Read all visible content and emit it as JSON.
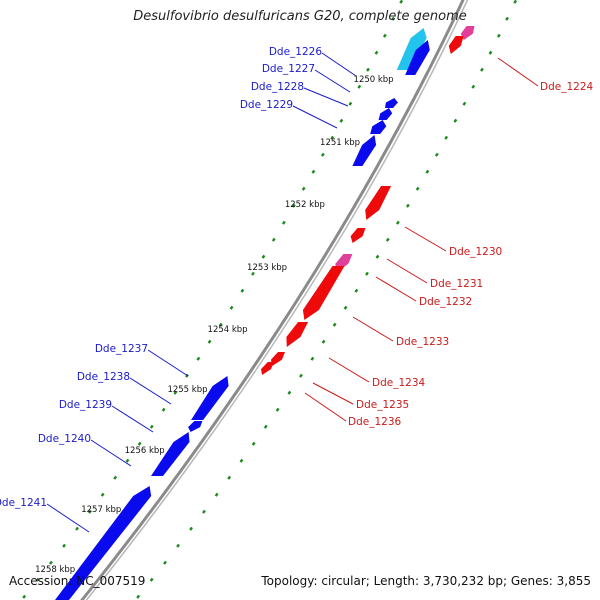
{
  "title": "Desulfovibrio desulfuricans G20, complete genome",
  "footer": {
    "accession": "Accession: NC_007519",
    "summary": "Topology: circular; Length: 3,730,232 bp; Genes: 3,855"
  },
  "colors": {
    "forward_gene": "#0a0aee",
    "reverse_gene": "#ee0a0a",
    "forward_label": "#1a1acc",
    "reverse_label": "#cc1a1a",
    "backbone": "#8a8a8a",
    "gc_dots": "#1a8a1a",
    "highlight_cyan": "#22c4ee",
    "highlight_magenta": "#e0409a"
  },
  "scale_labels": [
    "1250 kbp",
    "1251 kbp",
    "1252 kbp",
    "1253 kbp",
    "1254 kbp",
    "1255 kbp",
    "1256 kbp",
    "1257 kbp",
    "1258 kbp"
  ],
  "forward_genes": [
    "Dde_1226",
    "Dde_1227",
    "Dde_1228",
    "Dde_1229",
    "Dde_1237",
    "Dde_1238",
    "Dde_1239",
    "Dde_1240",
    "Dde_1241"
  ],
  "reverse_genes": [
    "Dde_1224",
    "Dde_1230",
    "Dde_1231",
    "Dde_1232",
    "Dde_1233",
    "Dde_1234",
    "Dde_1235",
    "Dde_1236"
  ]
}
